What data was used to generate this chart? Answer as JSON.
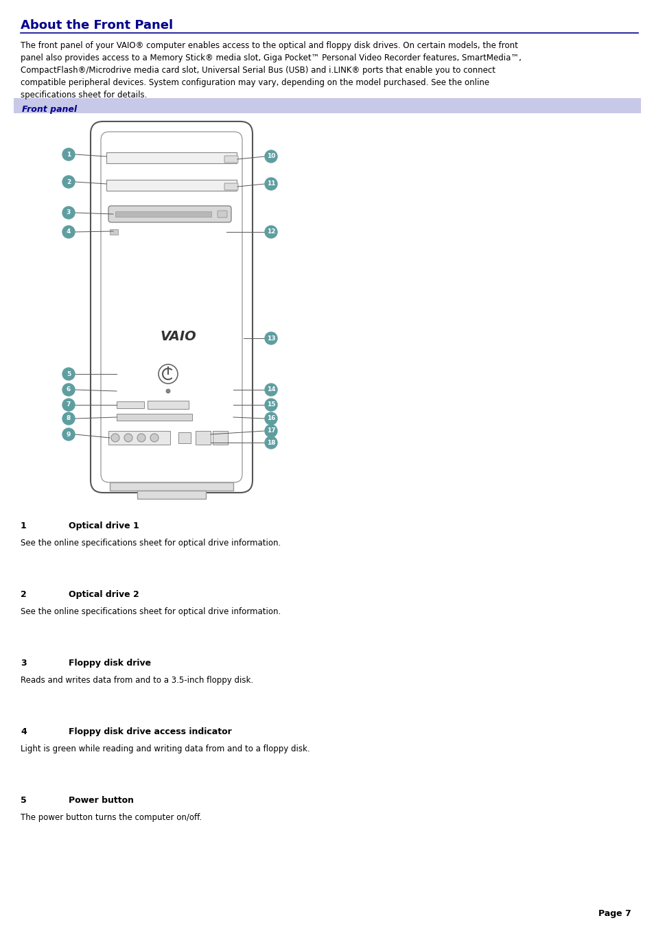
{
  "title": "About the Front Panel",
  "title_color": "#00008B",
  "title_underline_color": "#00008B",
  "bg_color": "#ffffff",
  "section_label_bg": "#c8c8e8",
  "section_label_text": "Front panel",
  "section_label_text_color": "#00008B",
  "body_text": "The front panel of your VAIO® computer enables access to the optical and floppy disk drives. On certain models, the front\npanel also provides access to a Memory Stick® media slot, Giga Pocket™ Personal Video Recorder features, SmartMedia™,\nCompactFlash®/Microdrive media card slot, Universal Serial Bus (USB) and i.LINK® ports that enable you to connect\ncompatible peripheral devices. System configuration may vary, depending on the model purchased. See the online\nspecifications sheet for details.",
  "body_text_color": "#000000",
  "items": [
    {
      "num": "1",
      "label": "Optical drive 1",
      "desc": "See the online specifications sheet for optical drive information."
    },
    {
      "num": "2",
      "label": "Optical drive 2",
      "desc": "See the online specifications sheet for optical drive information."
    },
    {
      "num": "3",
      "label": "Floppy disk drive",
      "desc": "Reads and writes data from and to a 3.5-inch floppy disk."
    },
    {
      "num": "4",
      "label": "Floppy disk drive access indicator",
      "desc": "Light is green while reading and writing data from and to a floppy disk."
    },
    {
      "num": "5",
      "label": "Power button",
      "desc": "The power button turns the computer on/off."
    }
  ],
  "page_num": "Page 7",
  "marker_color": "#5f9ea0",
  "marker_text_color": "#ffffff"
}
